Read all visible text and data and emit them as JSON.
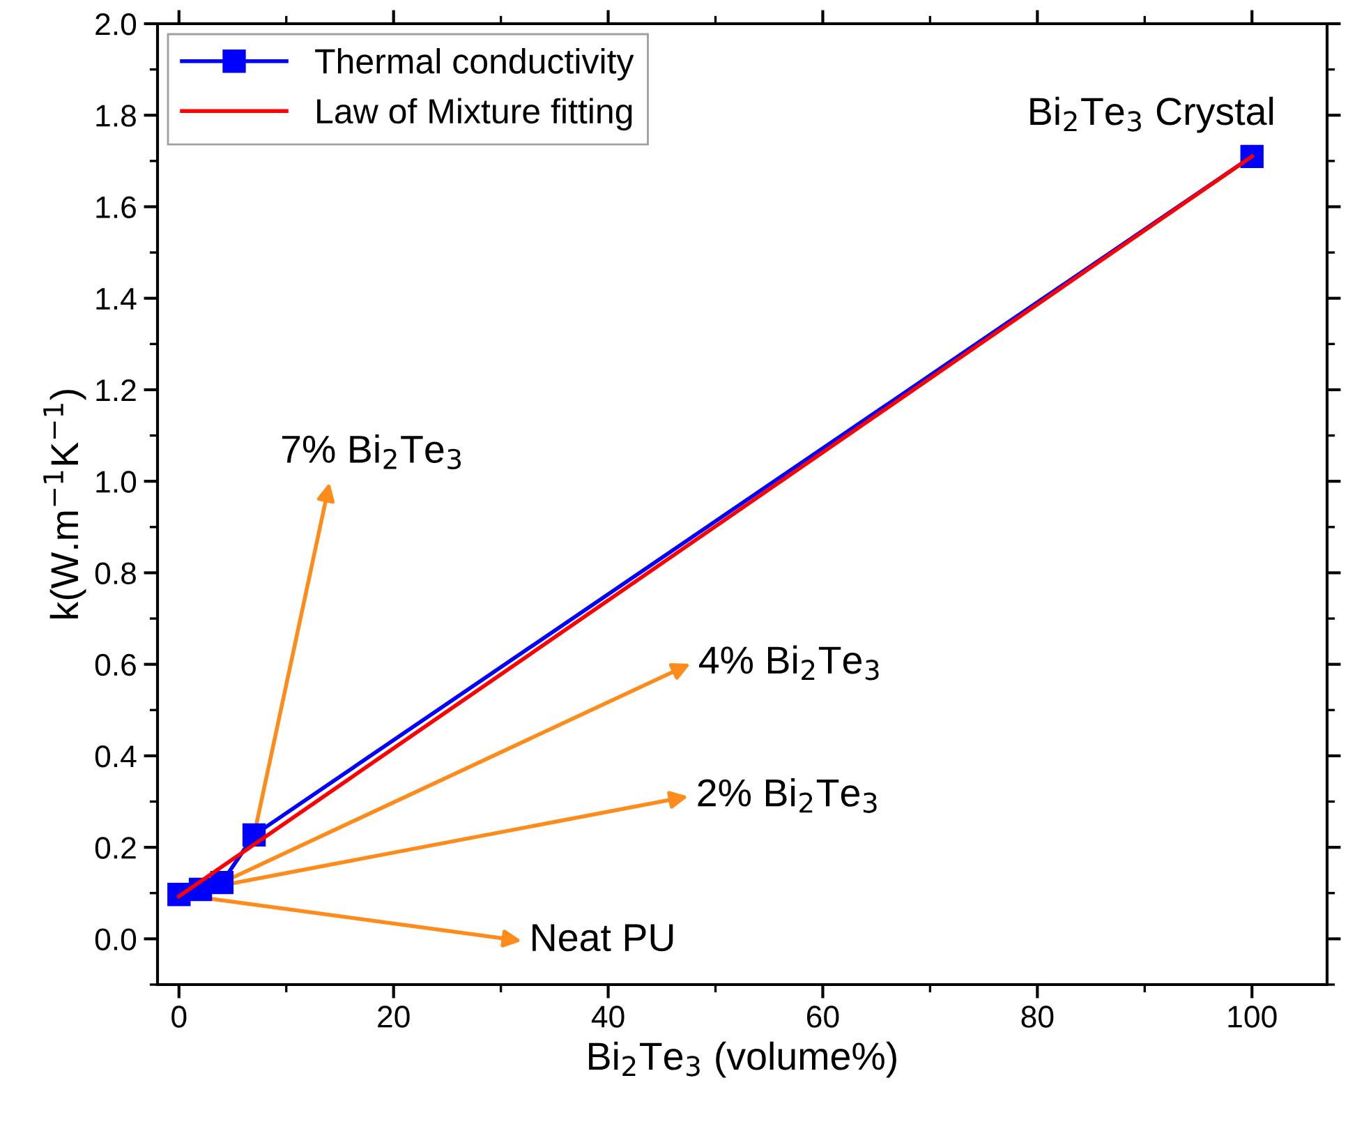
{
  "chart_data": {
    "type": "line",
    "xlabel": "Bi$_{2}$Te$_{3}$ (volume%)",
    "ylabel": "k(W.m$^{−1}$K$^{−1}$)",
    "series": [
      {
        "name": "Thermal conductivity",
        "color": "#0000ff",
        "marker": "square",
        "x": [
          0,
          2,
          4,
          7,
          100
        ],
        "values": [
          0.097,
          0.108,
          0.123,
          0.227,
          1.71
        ]
      },
      {
        "name": "Law of Mixture fitting",
        "color": "#ff0000",
        "marker": "none",
        "x": [
          0,
          100
        ],
        "values": [
          0.093,
          1.71
        ]
      }
    ],
    "annotations": [
      {
        "text": "Neat PU",
        "x": 0,
        "y": 0.097
      },
      {
        "text": "2% Bi$_{2}$Te$_{3}$",
        "x": 2,
        "y": 0.108
      },
      {
        "text": "4% Bi$_{2}$Te$_{3}$",
        "x": 4,
        "y": 0.123
      },
      {
        "text": "7% Bi$_{2}$Te$_{3}$",
        "x": 7,
        "y": 0.227
      },
      {
        "text": "Bi$_{2}$Te$_{3}$ Crystal",
        "x": 100,
        "y": 1.71
      }
    ],
    "xlim": [
      -2,
      107
    ],
    "ylim": [
      -0.1,
      2.0
    ],
    "xticks": [
      0,
      20,
      40,
      60,
      80,
      100
    ],
    "yticks": [
      {
        "value": 0,
        "label": "0.0"
      },
      0.2,
      0.4,
      0.6,
      0.8,
      {
        "value": 1,
        "label": "1.0"
      },
      1.2,
      1.4,
      1.6,
      1.8,
      {
        "value": 2,
        "label": "2.0"
      }
    ],
    "legend": "top left",
    "grid": false
  }
}
